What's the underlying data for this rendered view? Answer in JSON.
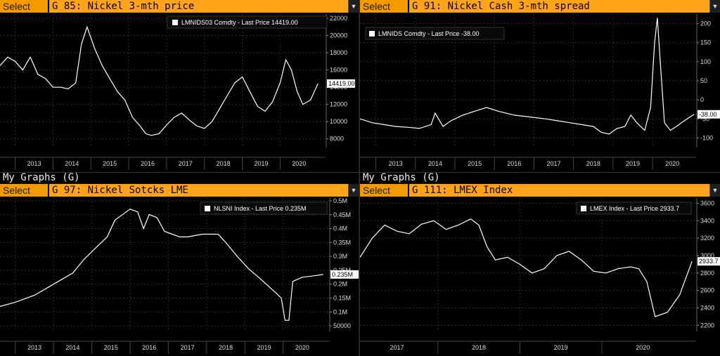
{
  "panels": [
    {
      "id": "tl",
      "select_label": "Select",
      "title": "G 85: Nickel 3-mth price",
      "legend": "LMNIDS03 Comdty - Last Price 14419.00",
      "last_value_label": "14419.00",
      "chart_data": {
        "type": "line",
        "title": "G 85: Nickel 3-mth price",
        "ylim": [
          7000,
          22500
        ],
        "yticks": [
          8000,
          10000,
          12000,
          14000,
          16000,
          18000,
          20000,
          22000
        ],
        "ytick_labels": [
          "8000",
          "10000",
          "12000",
          "14000",
          "16000",
          "18000",
          "20000",
          "22000"
        ],
        "xlim": [
          2012.1,
          2020.7
        ],
        "xticks": [
          2013,
          2014,
          2015,
          2016,
          2017,
          2018,
          2019,
          2020
        ],
        "xtick_labels": [
          "2013",
          "2014",
          "2015",
          "2016",
          "2017",
          "2018",
          "2019",
          "2020"
        ],
        "last_value": 14419,
        "series": [
          {
            "name": "LMNIDS03 Comdty",
            "x": [
              2012.1,
              2012.3,
              2012.5,
              2012.7,
              2012.9,
              2013.1,
              2013.3,
              2013.5,
              2013.7,
              2013.9,
              2014.1,
              2014.25,
              2014.4,
              2014.6,
              2014.8,
              2015.0,
              2015.2,
              2015.4,
              2015.6,
              2015.8,
              2015.95,
              2016.1,
              2016.3,
              2016.5,
              2016.7,
              2016.9,
              2017.1,
              2017.3,
              2017.5,
              2017.7,
              2017.9,
              2018.1,
              2018.3,
              2018.5,
              2018.7,
              2018.9,
              2019.1,
              2019.3,
              2019.5,
              2019.65,
              2019.8,
              2019.95,
              2020.1,
              2020.3,
              2020.5
            ],
            "y": [
              16500,
              17500,
              17000,
              16000,
              17500,
              15500,
              15000,
              14000,
              14000,
              13800,
              14500,
              19000,
              21000,
              18500,
              16500,
              15000,
              13500,
              12500,
              10500,
              9500,
              8600,
              8400,
              8600,
              9600,
              10500,
              11000,
              10200,
              9500,
              9200,
              10000,
              11500,
              13000,
              14500,
              15200,
              13500,
              11800,
              11200,
              12300,
              14500,
              17200,
              16000,
              13500,
              12000,
              12500,
              14419
            ]
          }
        ]
      }
    },
    {
      "id": "tr",
      "select_label": "Select",
      "title": "G 91: Nickel Cash 3-mth spread",
      "legend": "LMNIDS Comdty - Last Price -38.00",
      "last_value_label": "-38.00",
      "chart_data": {
        "type": "line",
        "title": "G 91: Nickel Cash 3-mth spread",
        "ylim": [
          -125,
          225
        ],
        "yticks": [
          -100,
          -50,
          0,
          50,
          100,
          150,
          200
        ],
        "ytick_labels": [
          "-100",
          "-50",
          "0",
          "50",
          "100",
          "150",
          "200"
        ],
        "xlim": [
          2012.1,
          2020.6
        ],
        "xticks": [
          2013,
          2014,
          2015,
          2016,
          2017,
          2018,
          2019,
          2020
        ],
        "xtick_labels": [
          "2013",
          "2014",
          "2015",
          "2016",
          "2017",
          "2018",
          "2019",
          "2020"
        ],
        "last_value": -38,
        "series": [
          {
            "name": "LMNIDS Comdty",
            "x": [
              2012.1,
              2012.4,
              2012.7,
              2013.0,
              2013.3,
              2013.6,
              2013.9,
              2014.0,
              2014.2,
              2014.4,
              2014.7,
              2015.0,
              2015.3,
              2015.6,
              2016.0,
              2016.4,
              2016.8,
              2017.1,
              2017.4,
              2017.7,
              2018.0,
              2018.2,
              2018.4,
              2018.6,
              2018.8,
              2018.95,
              2019.1,
              2019.3,
              2019.45,
              2019.55,
              2019.62,
              2019.7,
              2019.8,
              2019.95,
              2020.1,
              2020.3,
              2020.55
            ],
            "y": [
              -50,
              -60,
              -65,
              -70,
              -72,
              -75,
              -65,
              -35,
              -70,
              -55,
              -40,
              -30,
              -20,
              -30,
              -40,
              -45,
              -50,
              -55,
              -60,
              -65,
              -70,
              -85,
              -90,
              -75,
              -70,
              -40,
              -60,
              -80,
              -20,
              150,
              215,
              90,
              -60,
              -80,
              -70,
              -55,
              -38
            ]
          }
        ]
      }
    },
    {
      "id": "bl",
      "section_label": "My Graphs (G)",
      "select_label": "Select",
      "title": "G 97: Nickel Sotcks LME",
      "legend": "NLSNI Index - Last Price 0.235M",
      "last_value_label": "0.235M",
      "chart_data": {
        "type": "line",
        "title": "G 97: Nickel Sotcks LME",
        "ylim": [
          0.03,
          0.51
        ],
        "yticks": [
          0.05,
          0.1,
          0.15,
          0.2,
          0.25,
          0.3,
          0.35,
          0.4,
          0.45,
          0.5
        ],
        "ytick_labels": [
          "50000",
          "0.1M",
          "0.15M",
          "0.2M",
          "0.25M",
          "0.3M",
          "0.35M",
          "0.4M",
          "0.45M",
          "0.5M"
        ],
        "xlim": [
          2012.1,
          2020.7
        ],
        "xticks": [
          2013,
          2014,
          2015,
          2016,
          2017,
          2018,
          2019,
          2020
        ],
        "xtick_labels": [
          "2013",
          "2014",
          "2015",
          "2016",
          "2017",
          "2018",
          "2019",
          "2020"
        ],
        "last_value": 0.235,
        "series": [
          {
            "name": "NLSNI Index",
            "x": [
              2012.1,
              2012.5,
              2013.0,
              2013.5,
              2014.0,
              2014.3,
              2014.6,
              2014.9,
              2015.1,
              2015.3,
              2015.5,
              2015.7,
              2015.85,
              2016.0,
              2016.2,
              2016.4,
              2016.6,
              2016.8,
              2017.0,
              2017.2,
              2017.4,
              2017.6,
              2017.8,
              2018.0,
              2018.3,
              2018.6,
              2018.9,
              2019.1,
              2019.3,
              2019.45,
              2019.55,
              2019.65,
              2019.75,
              2020.0,
              2020.3,
              2020.55
            ],
            "y": [
              0.12,
              0.135,
              0.16,
              0.2,
              0.24,
              0.29,
              0.33,
              0.37,
              0.43,
              0.45,
              0.47,
              0.46,
              0.4,
              0.45,
              0.44,
              0.39,
              0.38,
              0.37,
              0.37,
              0.375,
              0.38,
              0.38,
              0.38,
              0.35,
              0.3,
              0.255,
              0.22,
              0.195,
              0.17,
              0.15,
              0.07,
              0.07,
              0.21,
              0.225,
              0.23,
              0.235
            ]
          }
        ]
      }
    },
    {
      "id": "br",
      "section_label": "My Graphs (G)",
      "select_label": "Select",
      "title": "G 111: LMEX Index",
      "legend": "LMEX Index - Last Price 2933.7",
      "last_value_label": "2933.7",
      "chart_data": {
        "type": "line",
        "title": "G 111: LMEX Index",
        "ylim": [
          2130,
          3660
        ],
        "yticks": [
          2200,
          2400,
          2600,
          2800,
          3000,
          3200,
          3400,
          3600
        ],
        "ytick_labels": [
          "2200",
          "2400",
          "2600",
          "2800",
          "3000",
          "3200",
          "3400",
          "3600"
        ],
        "xlim": [
          2016.55,
          2020.65
        ],
        "xticks": [
          2017,
          2018,
          2019,
          2020
        ],
        "xtick_labels": [
          "2017",
          "2018",
          "2019",
          "2020"
        ],
        "last_value": 2933.7,
        "series": [
          {
            "name": "LMEX Index",
            "x": [
              2016.55,
              2016.7,
              2016.85,
              2017.0,
              2017.15,
              2017.3,
              2017.45,
              2017.6,
              2017.75,
              2017.9,
              2018.0,
              2018.1,
              2018.2,
              2018.35,
              2018.5,
              2018.65,
              2018.8,
              2018.95,
              2019.1,
              2019.25,
              2019.4,
              2019.55,
              2019.7,
              2019.85,
              2019.95,
              2020.05,
              2020.15,
              2020.3,
              2020.45,
              2020.6
            ],
            "y": [
              2980,
              3200,
              3350,
              3280,
              3250,
              3360,
              3400,
              3300,
              3350,
              3420,
              3350,
              3100,
              2950,
              2980,
              2900,
              2800,
              2850,
              3000,
              3050,
              2950,
              2820,
              2800,
              2850,
              2870,
              2850,
              2700,
              2300,
              2350,
              2550,
              2933.7
            ]
          }
        ]
      }
    }
  ]
}
